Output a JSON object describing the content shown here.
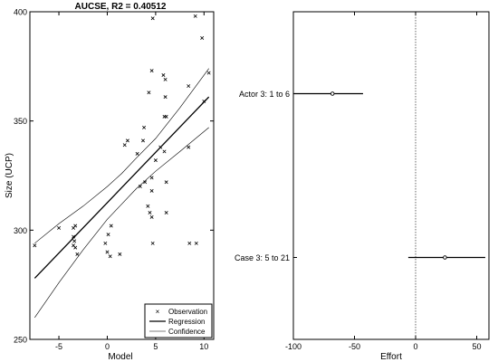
{
  "chart_data": [
    {
      "type": "scatter",
      "title": "AUCSE, R2 = 0.40512",
      "xlabel": "Model",
      "ylabel": "Size (UCP)",
      "xlim": [
        -8,
        11
      ],
      "ylim": [
        250,
        400
      ],
      "x_ticks": [
        -5,
        0,
        5,
        10
      ],
      "y_ticks": [
        250,
        300,
        350,
        400
      ],
      "grid": false,
      "legend_position": "bottom-right",
      "legend": [
        "Observation",
        "Regression",
        "Confidence"
      ],
      "series": [
        {
          "name": "Observation",
          "marker": "x",
          "points": [
            [
              -7.5,
              293
            ],
            [
              -5.0,
              301
            ],
            [
              -3.5,
              301
            ],
            [
              -3.3,
              302
            ],
            [
              -3.5,
              297
            ],
            [
              -3.4,
              295
            ],
            [
              -3.5,
              293
            ],
            [
              -3.3,
              292
            ],
            [
              -3.1,
              289
            ],
            [
              -0.2,
              294
            ],
            [
              0.1,
              298
            ],
            [
              0.0,
              290
            ],
            [
              0.3,
              288
            ],
            [
              0.4,
              302
            ],
            [
              1.3,
              289
            ],
            [
              1.8,
              339
            ],
            [
              2.1,
              341
            ],
            [
              3.1,
              335
            ],
            [
              3.4,
              320
            ],
            [
              3.7,
              341
            ],
            [
              3.8,
              347
            ],
            [
              3.9,
              322
            ],
            [
              4.2,
              311
            ],
            [
              4.4,
              308
            ],
            [
              4.3,
              363
            ],
            [
              4.7,
              397
            ],
            [
              4.6,
              373
            ],
            [
              4.6,
              324
            ],
            [
              4.6,
              318
            ],
            [
              4.6,
              306
            ],
            [
              4.7,
              294
            ],
            [
              5.0,
              332
            ],
            [
              5.5,
              338
            ],
            [
              5.8,
              371
            ],
            [
              5.9,
              352
            ],
            [
              5.9,
              336
            ],
            [
              6.0,
              369
            ],
            [
              6.0,
              361
            ],
            [
              6.1,
              352
            ],
            [
              6.1,
              322
            ],
            [
              6.1,
              308
            ],
            [
              8.4,
              366
            ],
            [
              8.4,
              338
            ],
            [
              8.5,
              294
            ],
            [
              9.2,
              294
            ],
            [
              9.1,
              398
            ],
            [
              9.8,
              388
            ],
            [
              10.0,
              359
            ],
            [
              10.5,
              372
            ]
          ]
        },
        {
          "name": "Regression",
          "line": [
            [
              -7.5,
              278
            ],
            [
              10.5,
              361
            ]
          ]
        },
        {
          "name": "Confidence",
          "upper": [
            [
              -7.5,
              294
            ],
            [
              -5,
              303
            ],
            [
              -2.5,
              311
            ],
            [
              0,
              320
            ],
            [
              1.5,
              326
            ],
            [
              3,
              333
            ],
            [
              5,
              342
            ],
            [
              7.5,
              356
            ],
            [
              10.5,
              374
            ]
          ],
          "lower": [
            [
              -7.5,
              260
            ],
            [
              -5,
              276
            ],
            [
              -2.5,
              291
            ],
            [
              0,
              305
            ],
            [
              1.5,
              312
            ],
            [
              3,
              319
            ],
            [
              5,
              327
            ],
            [
              7.5,
              336
            ],
            [
              10.5,
              347
            ]
          ]
        }
      ]
    },
    {
      "type": "errorbar",
      "xlabel": "Effort",
      "ylabel": "",
      "xlim": [
        -100,
        60
      ],
      "x_ticks": [
        -100,
        -50,
        0,
        50
      ],
      "reference_line_x": 0,
      "grid": false,
      "categories": [
        "Actor 3: 1 to 6",
        "Case 3: 5 to 21"
      ],
      "values": [
        -68,
        24
      ],
      "intervals": [
        [
          -100,
          -43
        ],
        [
          -6,
          57
        ]
      ]
    }
  ]
}
